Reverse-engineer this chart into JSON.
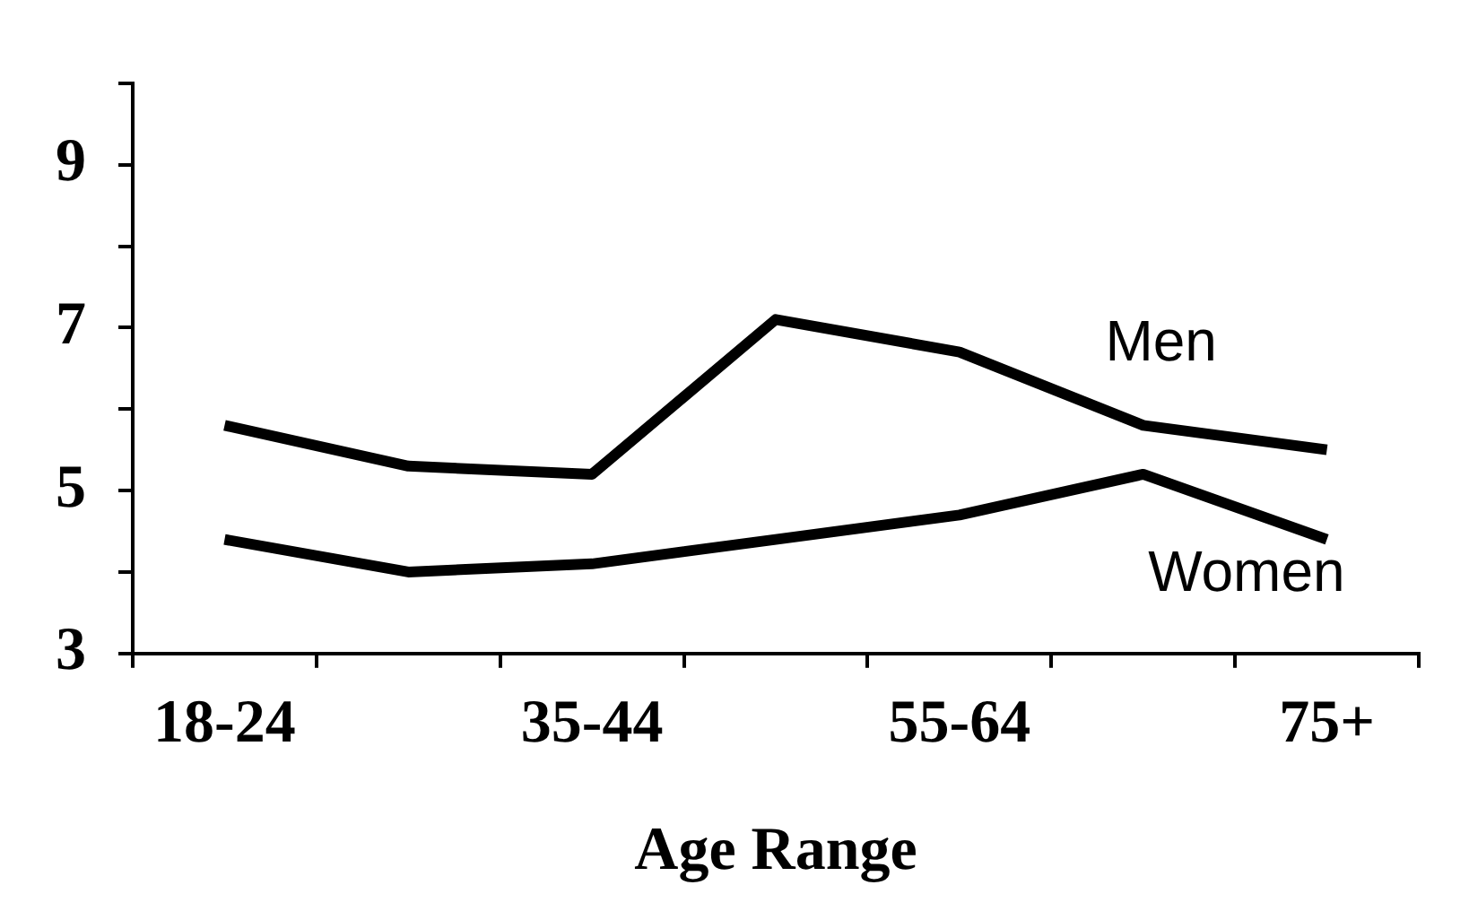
{
  "chart_data": {
    "type": "line",
    "xlabel": "Age Range",
    "categories": [
      "18-24",
      null,
      "35-44",
      null,
      "55-64",
      null,
      "75+"
    ],
    "series": [
      {
        "name": "Men",
        "color": "#000000",
        "values": [
          5.8,
          5.3,
          5.2,
          7.1,
          6.7,
          5.8,
          5.5
        ]
      },
      {
        "name": "Women",
        "color": "#000000",
        "values": [
          4.4,
          4.0,
          4.1,
          4.4,
          4.7,
          5.2,
          4.4
        ]
      }
    ],
    "ylim": [
      3,
      10
    ],
    "yticks": [
      3,
      {
        "value": 4,
        "label": null
      },
      5,
      {
        "value": 6,
        "label": null
      },
      7,
      {
        "value": 8,
        "label": null
      },
      9,
      {
        "value": 10,
        "label": null
      }
    ],
    "grid": false,
    "legend": false,
    "marker": "none",
    "line_style": "solid"
  }
}
